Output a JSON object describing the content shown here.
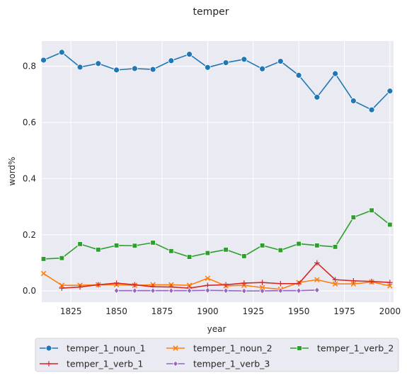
{
  "chart_data": {
    "type": "line",
    "title": "temper",
    "xlabel": "year",
    "ylabel": "word%",
    "xlim": [
      1809,
      2002
    ],
    "ylim": [
      -0.04,
      0.89
    ],
    "xticks": [
      1825,
      1850,
      1875,
      1900,
      1925,
      1950,
      1975,
      2000
    ],
    "yticks": [
      0.0,
      0.2,
      0.4,
      0.6,
      0.8
    ],
    "ytick_labels": [
      "0.0",
      "0.2",
      "0.4",
      "0.6",
      "0.8"
    ],
    "grid": true,
    "background": "#eaeaf2",
    "legend_placement": "bottom",
    "series": [
      {
        "name": "temper_1_noun_1",
        "color": "#1f77b4",
        "marker": "circle",
        "x": [
          1810,
          1820,
          1830,
          1840,
          1850,
          1860,
          1870,
          1880,
          1890,
          1900,
          1910,
          1920,
          1930,
          1940,
          1950,
          1960,
          1970,
          1980,
          1990,
          2000
        ],
        "y": [
          0.822,
          0.85,
          0.797,
          0.81,
          0.787,
          0.792,
          0.789,
          0.82,
          0.843,
          0.796,
          0.813,
          0.825,
          0.791,
          0.818,
          0.768,
          0.69,
          0.774,
          0.677,
          0.645,
          0.712
        ]
      },
      {
        "name": "temper_1_noun_2",
        "color": "#ff7f0e",
        "marker": "x",
        "x": [
          1810,
          1820,
          1830,
          1840,
          1850,
          1860,
          1870,
          1880,
          1890,
          1900,
          1910,
          1920,
          1930,
          1940,
          1950,
          1960,
          1970,
          1980,
          1990,
          2000
        ],
        "y": [
          0.062,
          0.02,
          0.02,
          0.022,
          0.022,
          0.02,
          0.022,
          0.022,
          0.02,
          0.045,
          0.018,
          0.02,
          0.012,
          0.006,
          0.03,
          0.04,
          0.025,
          0.025,
          0.032,
          0.018
        ]
      },
      {
        "name": "temper_1_verb_2",
        "color": "#2ca02c",
        "marker": "square",
        "x": [
          1810,
          1820,
          1830,
          1840,
          1850,
          1860,
          1870,
          1880,
          1890,
          1900,
          1910,
          1920,
          1930,
          1940,
          1950,
          1960,
          1970,
          1980,
          1990,
          2000
        ],
        "y": [
          0.114,
          0.117,
          0.167,
          0.147,
          0.162,
          0.161,
          0.172,
          0.142,
          0.121,
          0.135,
          0.147,
          0.124,
          0.162,
          0.145,
          0.168,
          0.162,
          0.157,
          0.262,
          0.287,
          0.236
        ]
      },
      {
        "name": "temper_1_verb_1",
        "color": "#d62728",
        "marker": "plus",
        "x": [
          1820,
          1830,
          1840,
          1850,
          1860,
          1870,
          1880,
          1890,
          1900,
          1910,
          1920,
          1930,
          1940,
          1950,
          1960,
          1970,
          1980,
          1990,
          2000
        ],
        "y": [
          0.01,
          0.014,
          0.022,
          0.028,
          0.022,
          0.015,
          0.014,
          0.01,
          0.02,
          0.022,
          0.028,
          0.03,
          0.026,
          0.026,
          0.1,
          0.04,
          0.036,
          0.034,
          0.03
        ]
      },
      {
        "name": "temper_1_verb_3",
        "color": "#9467bd",
        "marker": "diamond",
        "x": [
          1850,
          1860,
          1870,
          1880,
          1890,
          1900,
          1910,
          1920,
          1930,
          1940,
          1950,
          1960
        ],
        "y": [
          0.001,
          0.001,
          0.001,
          0.001,
          0.001,
          0.002,
          0.001,
          0.0,
          0.0,
          0.001,
          0.001,
          0.003
        ]
      }
    ]
  }
}
